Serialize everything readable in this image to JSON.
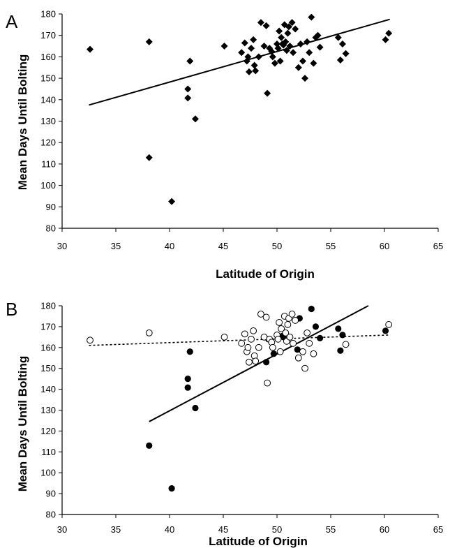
{
  "chart_data": [
    {
      "panel_label": "A",
      "type": "scatter",
      "xlabel": "Latitude of Origin",
      "ylabel": "Mean Days Until Bolting",
      "xlim": [
        30,
        65
      ],
      "ylim": [
        80,
        180
      ],
      "xticks": [
        30,
        35,
        40,
        45,
        50,
        55,
        60,
        65
      ],
      "yticks": [
        80,
        90,
        100,
        110,
        120,
        130,
        140,
        150,
        160,
        170,
        180
      ],
      "grid": false,
      "series": [
        {
          "marker": "diamond",
          "color": "#000000",
          "points": [
            [
              32.6,
              163.5
            ],
            [
              38.1,
              167
            ],
            [
              38.1,
              113
            ],
            [
              40.2,
              92.5
            ],
            [
              41.7,
              145
            ],
            [
              41.7,
              140.8
            ],
            [
              41.9,
              158
            ],
            [
              42.4,
              131
            ],
            [
              45.1,
              165
            ],
            [
              46.7,
              162
            ],
            [
              47.0,
              166.5
            ],
            [
              47.2,
              158
            ],
            [
              47.3,
              160
            ],
            [
              47.4,
              153
            ],
            [
              47.6,
              164
            ],
            [
              47.8,
              168
            ],
            [
              47.9,
              156
            ],
            [
              48.0,
              153.5
            ],
            [
              48.3,
              160
            ],
            [
              48.5,
              176
            ],
            [
              48.8,
              165
            ],
            [
              49.0,
              174.5
            ],
            [
              49.1,
              143
            ],
            [
              49.3,
              164
            ],
            [
              49.5,
              162.5
            ],
            [
              49.6,
              160
            ],
            [
              49.8,
              157
            ],
            [
              50.0,
              166
            ],
            [
              50.1,
              164
            ],
            [
              50.2,
              172
            ],
            [
              50.3,
              158
            ],
            [
              50.4,
              169
            ],
            [
              50.5,
              166
            ],
            [
              50.6,
              165.5
            ],
            [
              50.7,
              175
            ],
            [
              50.8,
              167
            ],
            [
              50.9,
              163
            ],
            [
              51.0,
              171
            ],
            [
              51.1,
              174
            ],
            [
              51.2,
              165
            ],
            [
              51.4,
              176
            ],
            [
              51.5,
              162
            ],
            [
              51.7,
              173
            ],
            [
              52.0,
              155
            ],
            [
              52.2,
              166
            ],
            [
              52.4,
              158
            ],
            [
              52.6,
              150
            ],
            [
              52.8,
              167
            ],
            [
              53.0,
              162
            ],
            [
              53.2,
              178.5
            ],
            [
              53.4,
              157
            ],
            [
              53.6,
              169
            ],
            [
              53.8,
              170
            ],
            [
              54.0,
              164.5
            ],
            [
              55.7,
              169
            ],
            [
              55.9,
              158.5
            ],
            [
              56.1,
              166
            ],
            [
              56.4,
              161.5
            ],
            [
              60.1,
              168
            ],
            [
              60.4,
              171
            ]
          ]
        }
      ],
      "trendlines": [
        {
          "style": "solid",
          "color": "#000000",
          "from": [
            32.5,
            137.5
          ],
          "to": [
            60.5,
            177.5
          ]
        }
      ]
    },
    {
      "panel_label": "B",
      "type": "scatter",
      "xlabel": "Latitude of Origin",
      "ylabel": "Mean Days Until Bolting",
      "xlim": [
        30,
        65
      ],
      "ylim": [
        80,
        180
      ],
      "xticks": [
        30,
        35,
        40,
        45,
        50,
        55,
        60,
        65
      ],
      "yticks": [
        80,
        90,
        100,
        110,
        120,
        130,
        140,
        150,
        160,
        170,
        180
      ],
      "grid": false,
      "series": [
        {
          "marker": "filled-circle",
          "color": "#000000",
          "points": [
            [
              38.1,
              113
            ],
            [
              40.2,
              92.5
            ],
            [
              41.7,
              145
            ],
            [
              41.7,
              140.8
            ],
            [
              41.9,
              158
            ],
            [
              42.4,
              131
            ],
            [
              49.0,
              153
            ],
            [
              49.2,
              164
            ],
            [
              49.7,
              157
            ],
            [
              50.5,
              165.5
            ],
            [
              50.6,
              165
            ],
            [
              51.9,
              159
            ],
            [
              52.1,
              174
            ],
            [
              53.2,
              178.5
            ],
            [
              53.6,
              170
            ],
            [
              54.0,
              164.5
            ],
            [
              55.7,
              169
            ],
            [
              55.9,
              158.5
            ],
            [
              56.1,
              166
            ],
            [
              60.1,
              168
            ]
          ]
        },
        {
          "marker": "open-circle",
          "color": "#000000",
          "points": [
            [
              32.6,
              163.5
            ],
            [
              38.1,
              167
            ],
            [
              45.1,
              165
            ],
            [
              46.7,
              162
            ],
            [
              47.0,
              166.5
            ],
            [
              47.2,
              158
            ],
            [
              47.3,
              160
            ],
            [
              47.4,
              153
            ],
            [
              47.6,
              164
            ],
            [
              47.8,
              168
            ],
            [
              47.9,
              156
            ],
            [
              48.0,
              153.5
            ],
            [
              48.3,
              160
            ],
            [
              48.5,
              176
            ],
            [
              48.8,
              165
            ],
            [
              49.0,
              174.5
            ],
            [
              49.1,
              143
            ],
            [
              49.3,
              164
            ],
            [
              49.5,
              162.5
            ],
            [
              49.6,
              160
            ],
            [
              50.0,
              166
            ],
            [
              50.1,
              164
            ],
            [
              50.2,
              172
            ],
            [
              50.3,
              158
            ],
            [
              50.4,
              169
            ],
            [
              50.7,
              175
            ],
            [
              50.8,
              167
            ],
            [
              50.9,
              163
            ],
            [
              51.0,
              171
            ],
            [
              51.1,
              174
            ],
            [
              51.2,
              165
            ],
            [
              51.4,
              176
            ],
            [
              51.5,
              162
            ],
            [
              51.7,
              173
            ],
            [
              52.0,
              155
            ],
            [
              52.4,
              158
            ],
            [
              52.6,
              150
            ],
            [
              52.8,
              167
            ],
            [
              53.0,
              162
            ],
            [
              53.4,
              157
            ],
            [
              56.4,
              161.5
            ],
            [
              60.4,
              171
            ]
          ]
        }
      ],
      "trendlines": [
        {
          "style": "solid",
          "color": "#000000",
          "from": [
            38.1,
            124.5
          ],
          "to": [
            58.5,
            180
          ]
        },
        {
          "style": "dashed",
          "color": "#000000",
          "from": [
            32.5,
            161
          ],
          "to": [
            60.5,
            166
          ]
        }
      ]
    }
  ]
}
